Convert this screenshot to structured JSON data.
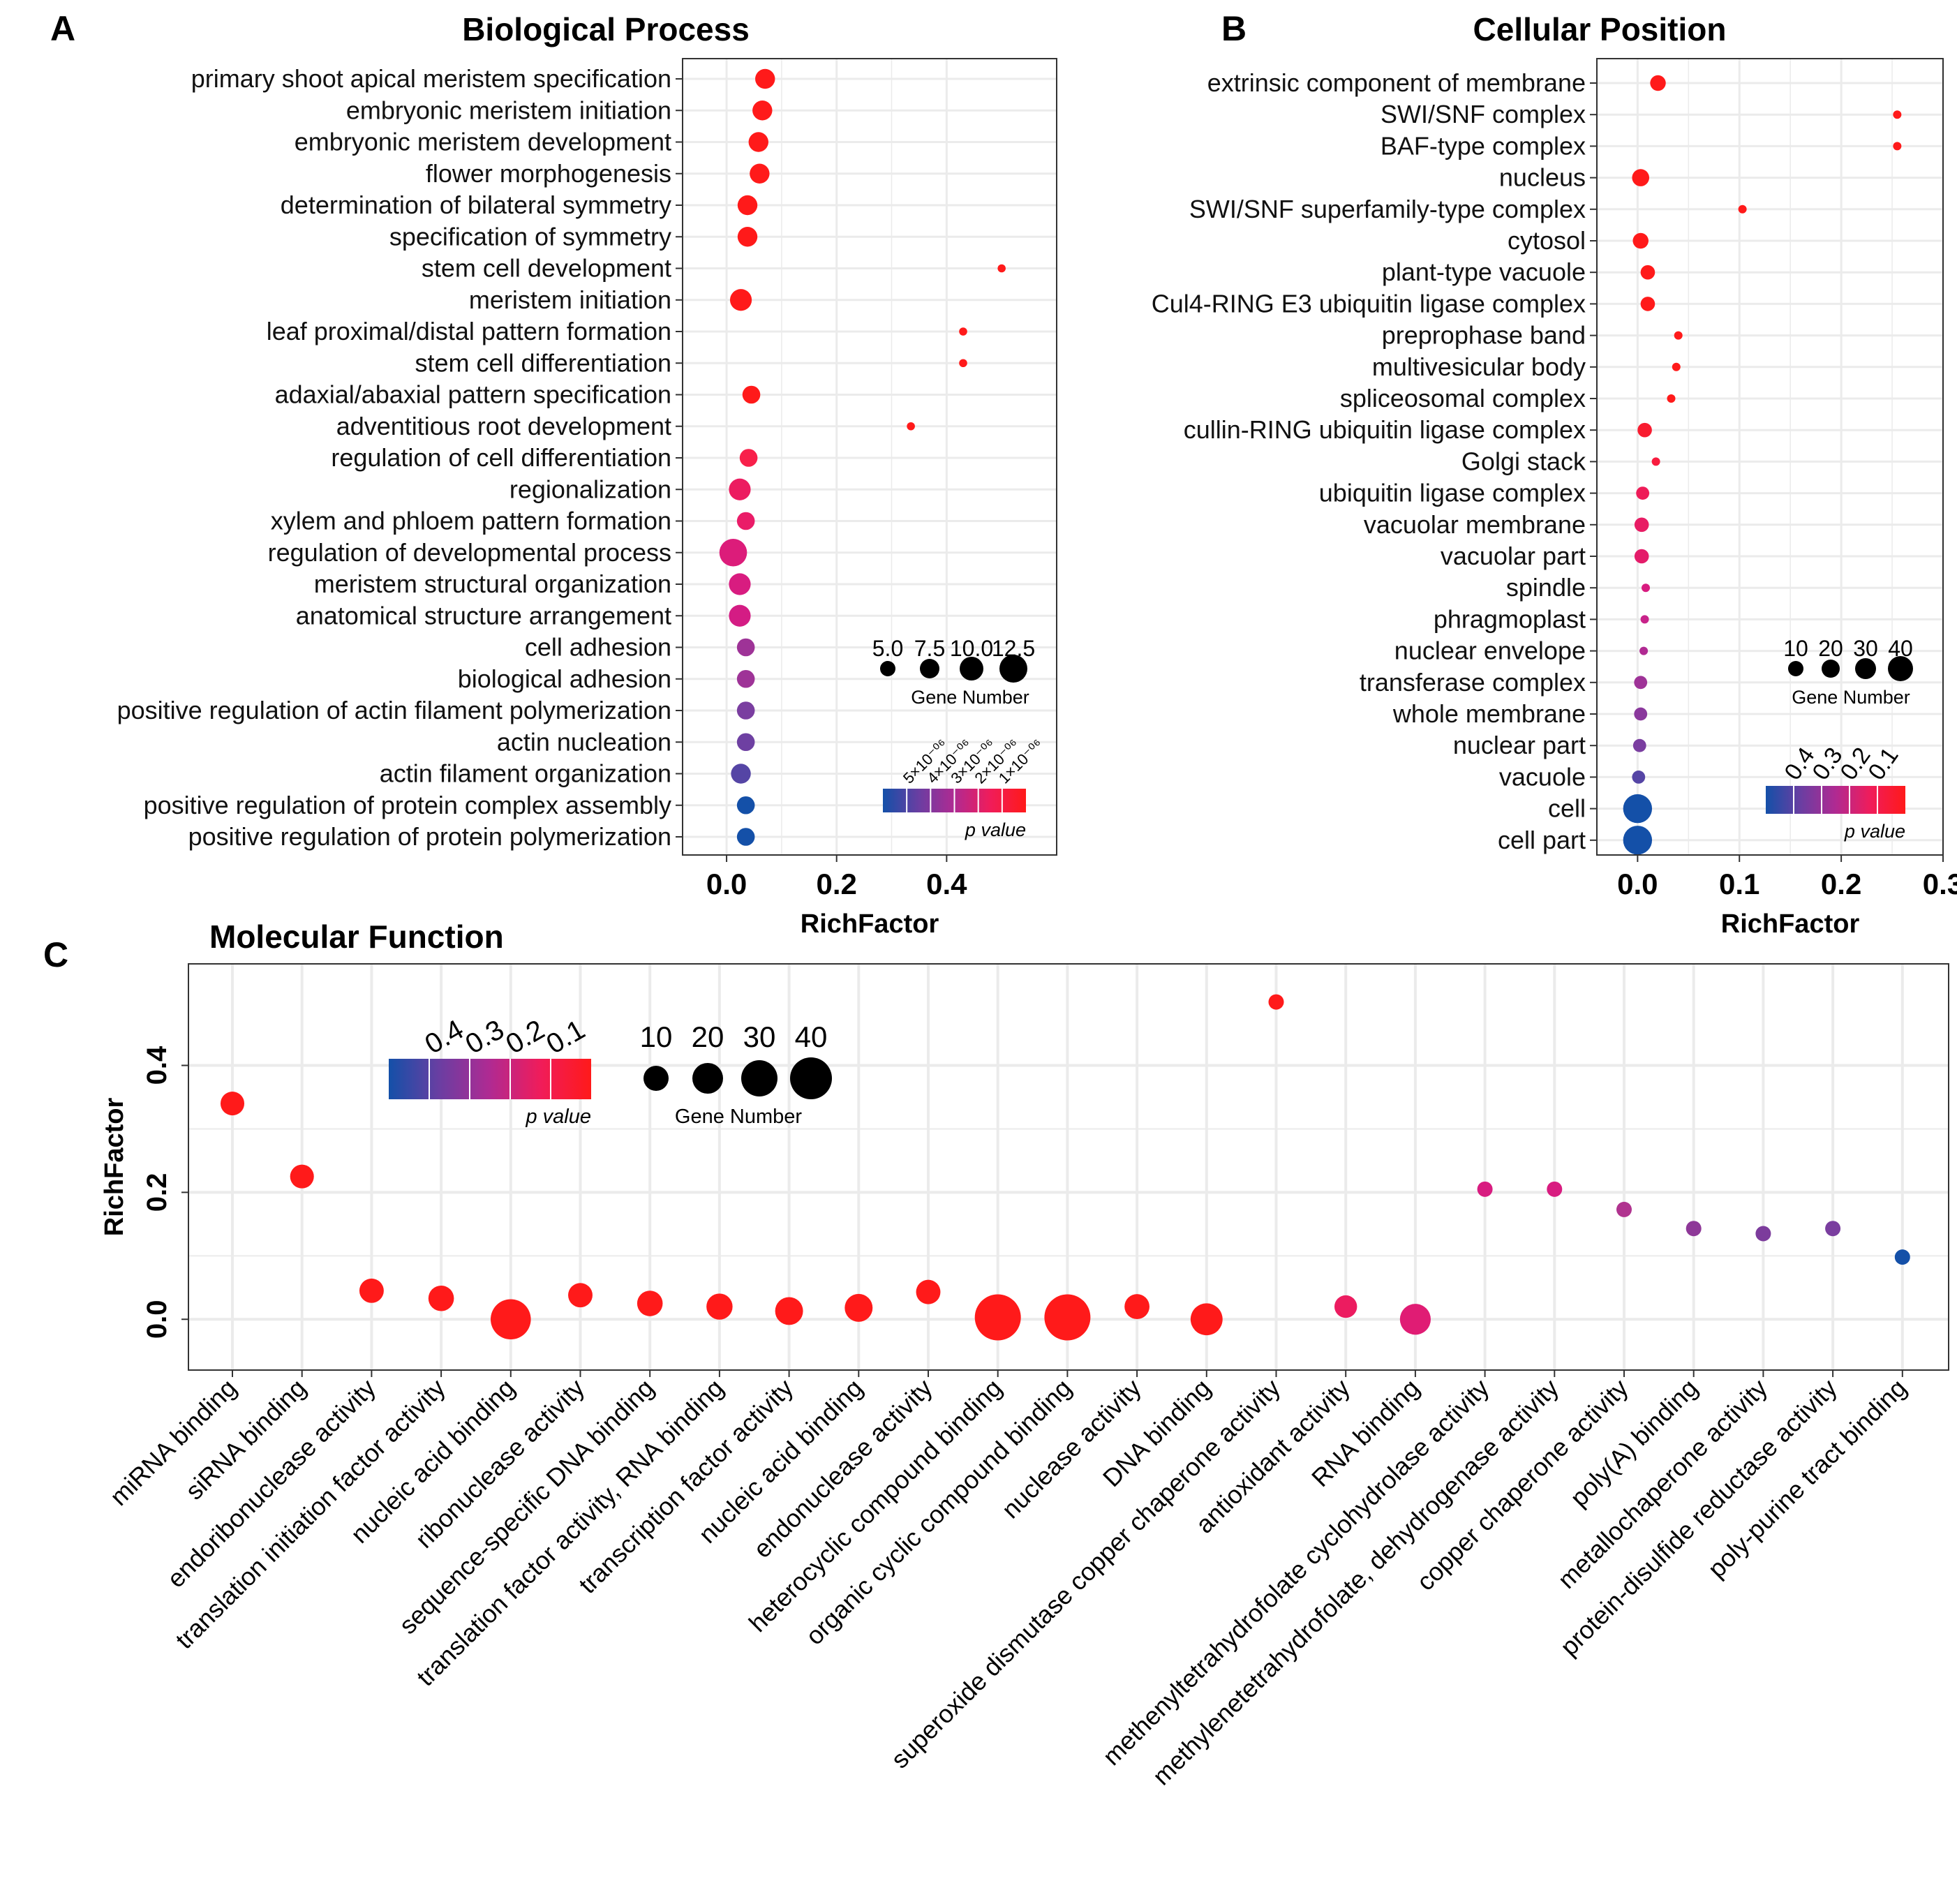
{
  "panels": {
    "a": {
      "letter": "A"
    },
    "b": {
      "letter": "B"
    },
    "c": {
      "letter": "C"
    }
  },
  "colors": {
    "low_p": "#ff1a1a",
    "mid_p": "#e6186b",
    "mid2_p": "#b0339a",
    "high_p": "#5a3ea0",
    "highest_p": "#1450a8",
    "grid": "#ebebeb",
    "panel_border": "#333333"
  },
  "chart_data": [
    {
      "id": "bp",
      "type": "scatter",
      "title": "Biological Process",
      "xlabel": "RichFactor",
      "ylabel": "",
      "xlim": [
        -0.08,
        0.6
      ],
      "xticks": [
        0.0,
        0.2,
        0.4
      ],
      "tick_labels": [
        "0.0",
        "0.2",
        "0.4"
      ],
      "grid": true,
      "legend_position": "bottom-right",
      "size_legend": {
        "title": "Gene Number",
        "labels": [
          "5.0",
          "7.5",
          "10.0",
          "12.5"
        ],
        "values": [
          5,
          7.5,
          10,
          12.5
        ]
      },
      "color_legend": {
        "title": "p value",
        "labels": [
          "5×10⁻⁰⁶",
          "4×10⁻⁰⁶",
          "3×10⁻⁰⁶",
          "2×10⁻⁰⁶",
          "1×10⁻⁰⁶"
        ]
      },
      "points": [
        {
          "term": "primary shoot apical meristem specification",
          "x": 0.07,
          "genes": 8,
          "color": "#ff1a1a"
        },
        {
          "term": "embryonic meristem initiation",
          "x": 0.065,
          "genes": 8,
          "color": "#ff1a1a"
        },
        {
          "term": "embryonic meristem development",
          "x": 0.058,
          "genes": 8,
          "color": "#ff1a1a"
        },
        {
          "term": "flower morphogenesis",
          "x": 0.06,
          "genes": 8,
          "color": "#ff1a1a"
        },
        {
          "term": "determination of bilateral symmetry",
          "x": 0.038,
          "genes": 8,
          "color": "#ff1a1a"
        },
        {
          "term": "specification of symmetry",
          "x": 0.038,
          "genes": 8,
          "color": "#ff1a1a"
        },
        {
          "term": "stem cell development",
          "x": 0.5,
          "genes": 2,
          "color": "#ff1a1a"
        },
        {
          "term": "meristem initiation",
          "x": 0.026,
          "genes": 9,
          "color": "#ff1a1a"
        },
        {
          "term": "leaf proximal/distal pattern formation",
          "x": 0.43,
          "genes": 2,
          "color": "#ff1a1a"
        },
        {
          "term": "stem cell differentiation",
          "x": 0.43,
          "genes": 2,
          "color": "#ff1a1a"
        },
        {
          "term": "adaxial/abaxial pattern specification",
          "x": 0.045,
          "genes": 7,
          "color": "#ff1a1a"
        },
        {
          "term": "adventitious root development",
          "x": 0.335,
          "genes": 2,
          "color": "#ff1a1a"
        },
        {
          "term": "regulation of cell differentiation",
          "x": 0.04,
          "genes": 7,
          "color": "#f8204a"
        },
        {
          "term": "regionalization",
          "x": 0.024,
          "genes": 9,
          "color": "#ec1c60"
        },
        {
          "term": "xylem and phloem pattern formation",
          "x": 0.035,
          "genes": 7,
          "color": "#ea1c68"
        },
        {
          "term": "regulation of developmental process",
          "x": 0.012,
          "genes": 12,
          "color": "#dc1c7a"
        },
        {
          "term": "meristem structural organization",
          "x": 0.024,
          "genes": 9,
          "color": "#d81c80"
        },
        {
          "term": "anatomical structure arrangement",
          "x": 0.024,
          "genes": 9,
          "color": "#d41c84"
        },
        {
          "term": "cell adhesion",
          "x": 0.035,
          "genes": 7,
          "color": "#9e3397"
        },
        {
          "term": "biological adhesion",
          "x": 0.035,
          "genes": 7,
          "color": "#9e3397"
        },
        {
          "term": "positive regulation of actin filament polymerization",
          "x": 0.035,
          "genes": 7,
          "color": "#7a3ea0"
        },
        {
          "term": "actin nucleation",
          "x": 0.035,
          "genes": 7,
          "color": "#6e40a2"
        },
        {
          "term": "actin filament organization",
          "x": 0.026,
          "genes": 8,
          "color": "#5545a5"
        },
        {
          "term": "positive regulation of protein complex assembly",
          "x": 0.035,
          "genes": 7,
          "color": "#1450a8"
        },
        {
          "term": "positive regulation of protein polymerization",
          "x": 0.035,
          "genes": 7,
          "color": "#1450a8"
        }
      ]
    },
    {
      "id": "cp",
      "type": "scatter",
      "title": "Cellular Position",
      "xlabel": "RichFactor",
      "ylabel": "",
      "xlim": [
        -0.04,
        0.3
      ],
      "xticks": [
        0.0,
        0.1,
        0.2,
        0.3
      ],
      "tick_labels": [
        "0.0",
        "0.1",
        "0.2",
        "0.3"
      ],
      "grid": true,
      "legend_position": "bottom-right",
      "size_legend": {
        "title": "Gene Number",
        "labels": [
          "10",
          "20",
          "30",
          "40"
        ],
        "values": [
          10,
          20,
          30,
          40
        ]
      },
      "color_legend": {
        "title": "p value",
        "labels": [
          "0.4",
          "0.3",
          "0.2",
          "0.1"
        ]
      },
      "points": [
        {
          "term": "extrinsic component of membrane",
          "x": 0.02,
          "genes": 8,
          "color": "#ff1a1a"
        },
        {
          "term": "SWI/SNF complex",
          "x": 0.255,
          "genes": 2,
          "color": "#ff1a1a"
        },
        {
          "term": "BAF-type complex",
          "x": 0.255,
          "genes": 2,
          "color": "#ff1a1a"
        },
        {
          "term": "nucleus",
          "x": 0.003,
          "genes": 18,
          "color": "#ff1a1a"
        },
        {
          "term": "SWI/SNF superfamily-type complex",
          "x": 0.103,
          "genes": 2,
          "color": "#ff1a1a"
        },
        {
          "term": "cytosol",
          "x": 0.003,
          "genes": 15,
          "color": "#ff1a1a"
        },
        {
          "term": "plant-type vacuole",
          "x": 0.01,
          "genes": 7,
          "color": "#ff1a1a"
        },
        {
          "term": "Cul4-RING E3 ubiquitin ligase complex",
          "x": 0.01,
          "genes": 7,
          "color": "#ff1a1a"
        },
        {
          "term": "preprophase band",
          "x": 0.04,
          "genes": 4,
          "color": "#ff1a1a"
        },
        {
          "term": "multivesicular body",
          "x": 0.038,
          "genes": 4,
          "color": "#ff1a1a"
        },
        {
          "term": "spliceosomal complex",
          "x": 0.033,
          "genes": 4,
          "color": "#ff1a1a"
        },
        {
          "term": "cullin-RING ubiquitin ligase complex",
          "x": 0.007,
          "genes": 7,
          "color": "#f81c30"
        },
        {
          "term": "Golgi stack",
          "x": 0.018,
          "genes": 4,
          "color": "#f81c3e"
        },
        {
          "term": "ubiquitin ligase complex",
          "x": 0.005,
          "genes": 6,
          "color": "#ee1c58"
        },
        {
          "term": "vacuolar membrane",
          "x": 0.004,
          "genes": 7,
          "color": "#e81c64"
        },
        {
          "term": "vacuolar part",
          "x": 0.004,
          "genes": 7,
          "color": "#e41c6a"
        },
        {
          "term": "spindle",
          "x": 0.008,
          "genes": 4,
          "color": "#d81c80"
        },
        {
          "term": "phragmoplast",
          "x": 0.007,
          "genes": 4,
          "color": "#c8238a"
        },
        {
          "term": "nuclear envelope",
          "x": 0.006,
          "genes": 4,
          "color": "#b02a92"
        },
        {
          "term": "transferase complex",
          "x": 0.003,
          "genes": 6,
          "color": "#9e3397"
        },
        {
          "term": "whole membrane",
          "x": 0.003,
          "genes": 6,
          "color": "#8a389c"
        },
        {
          "term": "nuclear part",
          "x": 0.002,
          "genes": 6,
          "color": "#7a3ea0"
        },
        {
          "term": "vacuole",
          "x": 0.001,
          "genes": 6,
          "color": "#5545a5"
        },
        {
          "term": "cell",
          "x": 0.0,
          "genes": 42,
          "color": "#1450a8"
        },
        {
          "term": "cell part",
          "x": 0.0,
          "genes": 42,
          "color": "#1450a8"
        }
      ]
    },
    {
      "id": "mf",
      "type": "scatter",
      "title": "Molecular Function",
      "xlabel": "",
      "ylabel": "RichFactor",
      "ylim": [
        -0.08,
        0.56
      ],
      "yticks": [
        0.0,
        0.2,
        0.4
      ],
      "tick_labels": [
        "0.0",
        "0.2",
        "0.4"
      ],
      "grid": true,
      "legend_position": "top-left",
      "size_legend": {
        "title": "Gene Number",
        "labels": [
          "10",
          "20",
          "30",
          "40"
        ],
        "values": [
          10,
          20,
          30,
          40
        ]
      },
      "color_legend": {
        "title": "p value",
        "labels": [
          "0.4",
          "0.3",
          "0.2",
          "0.1"
        ]
      },
      "points": [
        {
          "term": "miRNA binding",
          "y": 0.34,
          "genes": 12,
          "color": "#ff1a1a"
        },
        {
          "term": "siRNA binding",
          "y": 0.225,
          "genes": 12,
          "color": "#ff1a1a"
        },
        {
          "term": "endoribonuclease activity",
          "y": 0.045,
          "genes": 13,
          "color": "#ff1a1a"
        },
        {
          "term": "translation initiation factor activity",
          "y": 0.033,
          "genes": 15,
          "color": "#ff1a1a"
        },
        {
          "term": "nucleic acid binding",
          "y": 0.0,
          "genes": 40,
          "color": "#ff1a1a"
        },
        {
          "term": "ribonuclease activity",
          "y": 0.038,
          "genes": 13,
          "color": "#ff1a1a"
        },
        {
          "term": "sequence-specific DNA binding",
          "y": 0.025,
          "genes": 15,
          "color": "#ff1a1a"
        },
        {
          "term": "translation factor activity, RNA binding",
          "y": 0.02,
          "genes": 16,
          "color": "#ff1a1a"
        },
        {
          "term": "transcription factor activity",
          "y": 0.013,
          "genes": 19,
          "color": "#ff1a1a"
        },
        {
          "term": "nucleic acid binding",
          "y": 0.018,
          "genes": 19,
          "color": "#ff1a1a"
        },
        {
          "term": "endonuclease activity",
          "y": 0.043,
          "genes": 13,
          "color": "#ff1a1a"
        },
        {
          "term": "heterocyclic compound binding",
          "y": 0.003,
          "genes": 50,
          "color": "#ff1a1a"
        },
        {
          "term": "organic cyclic compound binding",
          "y": 0.003,
          "genes": 50,
          "color": "#ff1a1a"
        },
        {
          "term": "nuclease activity",
          "y": 0.02,
          "genes": 14,
          "color": "#ff1a1a"
        },
        {
          "term": "DNA binding",
          "y": 0.0,
          "genes": 26,
          "color": "#ff1a1a"
        },
        {
          "term": "superoxide dismutase copper chaperone activity",
          "y": 0.5,
          "genes": 2,
          "color": "#ff1a1a"
        },
        {
          "term": "antioxidant activity",
          "y": 0.02,
          "genes": 10,
          "color": "#ec1c60"
        },
        {
          "term": "RNA binding",
          "y": 0.0,
          "genes": 24,
          "color": "#e01c74"
        },
        {
          "term": "methenyltetrahydrofolate cyclohydrolase activity",
          "y": 0.205,
          "genes": 2,
          "color": "#d81c80"
        },
        {
          "term": "methylenetetrahydrofolate, dehydrogenase activity",
          "y": 0.205,
          "genes": 2,
          "color": "#d81c80"
        },
        {
          "term": "copper chaperone activity",
          "y": 0.173,
          "genes": 2,
          "color": "#b0338f"
        },
        {
          "term": "poly(A) binding",
          "y": 0.143,
          "genes": 2,
          "color": "#8e3898"
        },
        {
          "term": "metallochaperone activity",
          "y": 0.135,
          "genes": 2,
          "color": "#7c3c9c"
        },
        {
          "term": "protein-disulfide reductase activity",
          "y": 0.143,
          "genes": 2,
          "color": "#7a3e9f"
        },
        {
          "term": "poly-purine tract binding",
          "y": 0.098,
          "genes": 2,
          "color": "#1450a8"
        }
      ]
    }
  ]
}
